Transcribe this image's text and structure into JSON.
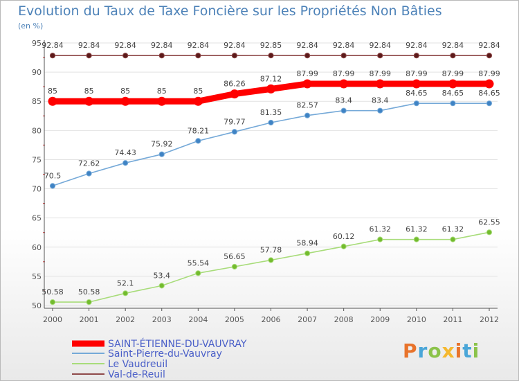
{
  "title": "Evolution du Taux de Taxe Foncière sur les Propriétés Non Bâties",
  "unit": "(en %)",
  "brand": "Proxiti",
  "colors": {
    "title": "#4d82b8",
    "axis": "#555555",
    "grid": "#e2e2e2",
    "brand": [
      "#e8732b",
      "#4aa6d8",
      "#8bc34a",
      "#f5b82e",
      "#e8732b",
      "#4aa6d8",
      "#8bc34a"
    ]
  },
  "chart_data": {
    "type": "line",
    "x": [
      "2000",
      "2001",
      "2002",
      "2003",
      "2004",
      "2005",
      "2006",
      "2007",
      "2008",
      "2009",
      "2010",
      "2011",
      "2012"
    ],
    "ylim": [
      50,
      95
    ],
    "yticks": [
      "50",
      "55",
      "60",
      "65",
      "70",
      "75",
      "80",
      "85",
      "90",
      "95"
    ],
    "grid": "horizontal",
    "legend_position": "bottom-left",
    "series": [
      {
        "name": "SAINT-ÉTIENNE-DU-VAUVRAY",
        "color": "#ff0000",
        "emphasis": true,
        "values": [
          85,
          85,
          85,
          85,
          85,
          86.26,
          87.12,
          87.99,
          87.99,
          87.99,
          87.99,
          87.99,
          87.99
        ],
        "labels": [
          "85",
          "85",
          "85",
          "85",
          "85",
          "86.26",
          "87.12",
          "87.99",
          "87.99",
          "87.99",
          "87.99",
          "87.99",
          "87.99"
        ]
      },
      {
        "name": "Saint-Pierre-du-Vauvray",
        "color": "#75a9d8",
        "marker": "#3f83c4",
        "values": [
          70.5,
          72.62,
          74.43,
          75.92,
          78.21,
          79.77,
          81.35,
          82.57,
          83.4,
          83.4,
          84.65,
          84.65,
          84.65
        ],
        "labels": [
          "70.5",
          "72.62",
          "74.43",
          "75.92",
          "78.21",
          "79.77",
          "81.35",
          "82.57",
          "83.4",
          "83.4",
          "84.65",
          "84.65",
          "84.65"
        ]
      },
      {
        "name": "Le Vaudreuil",
        "color": "#a8dc7a",
        "marker": "#73bb2e",
        "values": [
          50.58,
          50.58,
          52.1,
          53.4,
          55.54,
          56.65,
          57.78,
          58.94,
          60.12,
          61.32,
          61.32,
          61.32,
          62.55
        ],
        "labels": [
          "50.58",
          "50.58",
          "52.1",
          "53.4",
          "55.54",
          "56.65",
          "57.78",
          "58.94",
          "60.12",
          "61.32",
          "61.32",
          "61.32",
          "62.55"
        ]
      },
      {
        "name": "Val-de-Reuil",
        "color": "#8f4a4a",
        "marker": "#5c1a1a",
        "values": [
          92.84,
          92.84,
          92.84,
          92.84,
          92.84,
          92.84,
          92.85,
          92.84,
          92.84,
          92.84,
          92.84,
          92.84,
          92.84
        ],
        "labels": [
          "92.84",
          "92.84",
          "92.84",
          "92.84",
          "92.84",
          "92.84",
          "92.85",
          "92.84",
          "92.84",
          "92.84",
          "92.84",
          "92.84",
          "92.84"
        ]
      }
    ]
  }
}
